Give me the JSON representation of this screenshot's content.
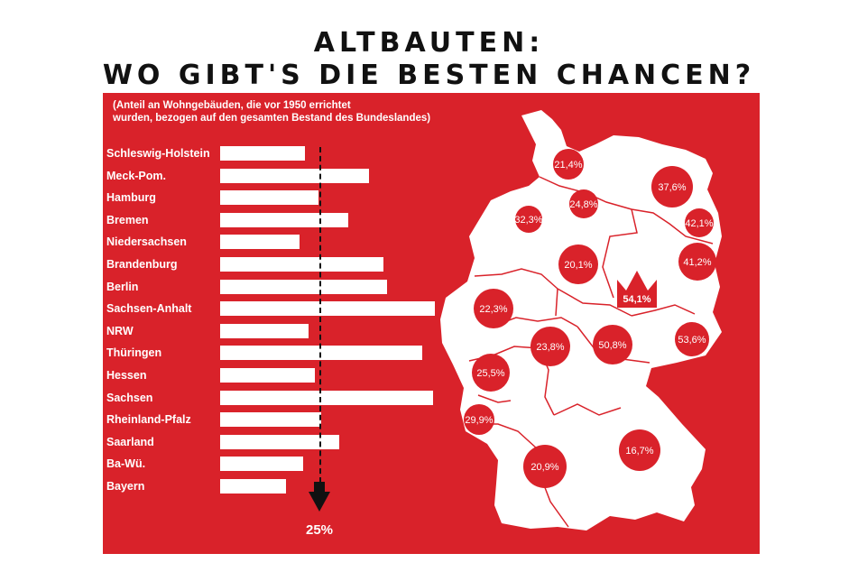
{
  "title_line1": "ALTBAUTEN:",
  "title_line2": "WO GIBT'S DIE BESTEN CHANCEN?",
  "colors": {
    "panel": "#d9222a",
    "bubble": "#d9222a",
    "bar": "#ffffff",
    "map": "#ffffff"
  },
  "chart_data": {
    "type": "bar",
    "orientation": "horizontal",
    "subtitle": "(Anteil an Wohngebäuden, die vor 1950 errichtet\nwurden, bezogen auf den gesamten Bestand des Bundeslandes)",
    "categories": [
      "Schleswig-Holstein",
      "Meck-Pom.",
      "Hamburg",
      "Bremen",
      "Niedersachsen",
      "Brandenburg",
      "Berlin",
      "Sachsen-Anhalt",
      "NRW",
      "Thüringen",
      "Hessen",
      "Sachsen",
      "Rheinland-Pfalz",
      "Saarland",
      "Ba-Wü.",
      "Bayern"
    ],
    "values": [
      21.4,
      37.6,
      24.8,
      32.3,
      20.1,
      41.2,
      42.1,
      54.1,
      22.3,
      50.8,
      23.8,
      53.6,
      25.5,
      29.9,
      20.9,
      16.7
    ],
    "reference_line": {
      "value": 25,
      "label": "25%"
    },
    "map_labels": [
      {
        "state": "Schleswig-Holstein",
        "label": "21,4%"
      },
      {
        "state": "Meck-Pom.",
        "label": "37,6%"
      },
      {
        "state": "Hamburg",
        "label": "24,8%"
      },
      {
        "state": "Bremen",
        "label": "32,3%"
      },
      {
        "state": "Berlin",
        "label": "42,1%"
      },
      {
        "state": "Niedersachsen",
        "label": "20,1%"
      },
      {
        "state": "Brandenburg",
        "label": "41,2%"
      },
      {
        "state": "Sachsen-Anhalt",
        "label": "54,1%"
      },
      {
        "state": "NRW",
        "label": "22,3%"
      },
      {
        "state": "Hessen",
        "label": "23,8%"
      },
      {
        "state": "Thüringen",
        "label": "50,8%"
      },
      {
        "state": "Sachsen",
        "label": "53,6%"
      },
      {
        "state": "Rheinland-Pfalz",
        "label": "25,5%"
      },
      {
        "state": "Saarland",
        "label": "29,9%"
      },
      {
        "state": "Ba-Wü.",
        "label": "20,9%"
      },
      {
        "state": "Bayern",
        "label": "16,7%"
      }
    ]
  }
}
